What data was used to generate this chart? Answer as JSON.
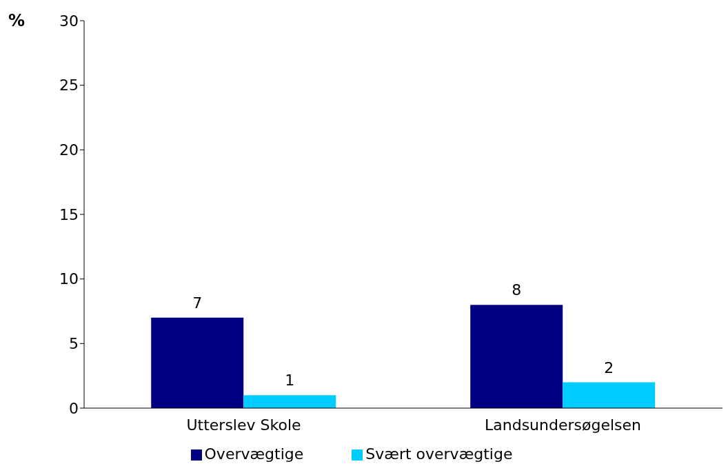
{
  "chart_data": {
    "type": "bar",
    "ylabel": "%",
    "categories": [
      "Utterslev Skole",
      "Landsundersøgelsen"
    ],
    "series": [
      {
        "name": "Overvægtige",
        "color": "#000080",
        "values": [
          7,
          8
        ]
      },
      {
        "name": "Svært overvægtige",
        "color": "#00ccff",
        "values": [
          1,
          2
        ]
      }
    ],
    "ylim": [
      0,
      30
    ],
    "yticks": [
      0,
      5,
      10,
      15,
      20,
      25,
      30
    ],
    "grid": false,
    "legend": "bottom",
    "data_labels": true
  }
}
